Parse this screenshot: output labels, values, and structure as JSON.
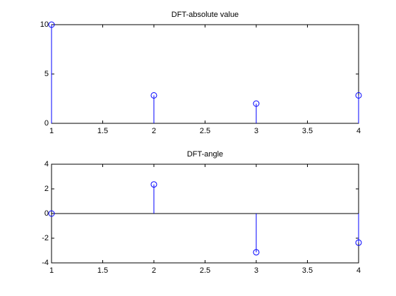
{
  "chart_data": [
    {
      "type": "stem",
      "title": "DFT-absolute value",
      "x": [
        1,
        2,
        3,
        4
      ],
      "values": [
        10,
        2.83,
        2,
        2.83
      ],
      "color": "#0000ff",
      "xlim": [
        1,
        4
      ],
      "xticks": [
        1,
        1.5,
        2,
        2.5,
        3,
        3.5,
        4
      ],
      "ylim": [
        0,
        10
      ],
      "yticks": [
        0,
        5,
        10
      ],
      "grid": false
    },
    {
      "type": "stem",
      "title": "DFT-angle",
      "x": [
        1,
        2,
        3,
        4
      ],
      "values": [
        0,
        2.36,
        -3.14,
        -2.36
      ],
      "color": "#0000ff",
      "xlim": [
        1,
        4
      ],
      "xticks": [
        1,
        1.5,
        2,
        2.5,
        3,
        3.5,
        4
      ],
      "ylim": [
        -4,
        4
      ],
      "yticks": [
        -4,
        -2,
        0,
        2,
        4
      ],
      "grid": false
    }
  ]
}
